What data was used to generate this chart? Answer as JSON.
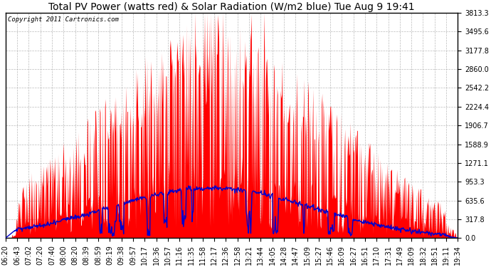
{
  "title": "Total PV Power (watts red) & Solar Radiation (W/m2 blue) Tue Aug 9 19:41",
  "copyright_text": "Copyright 2011 Cartronics.com",
  "y_max": 3813.3,
  "y_ticks": [
    0.0,
    317.8,
    635.6,
    953.3,
    1271.1,
    1588.9,
    1906.7,
    2224.4,
    2542.2,
    2860.0,
    3177.8,
    3495.6,
    3813.3
  ],
  "x_tick_labels": [
    "06:20",
    "06:43",
    "07:02",
    "07:20",
    "07:40",
    "08:00",
    "08:20",
    "08:39",
    "08:59",
    "09:19",
    "09:38",
    "09:57",
    "10:17",
    "10:36",
    "10:57",
    "11:16",
    "11:35",
    "11:58",
    "12:17",
    "12:36",
    "12:58",
    "13:21",
    "13:44",
    "14:05",
    "14:28",
    "14:47",
    "15:09",
    "15:27",
    "15:46",
    "16:09",
    "16:27",
    "16:51",
    "17:10",
    "17:31",
    "17:49",
    "18:09",
    "18:32",
    "18:51",
    "19:11",
    "19:34"
  ],
  "bg_color": "#ffffff",
  "plot_bg_color": "#ffffff",
  "grid_color": "#aaaaaa",
  "red_color": "#ff0000",
  "blue_color": "#0000cc",
  "title_fontsize": 10,
  "tick_fontsize": 7,
  "copyright_fontsize": 6.5
}
